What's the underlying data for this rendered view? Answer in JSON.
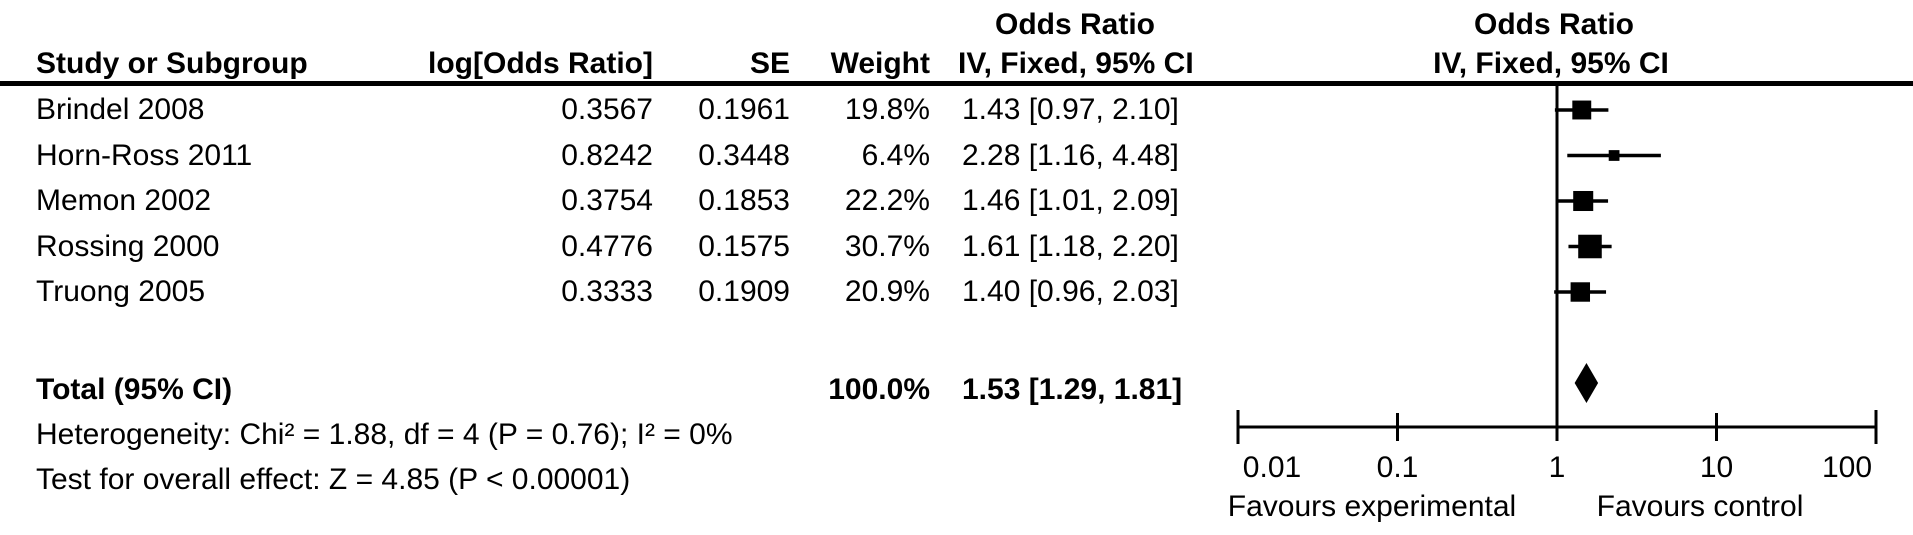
{
  "chart_data": {
    "type": "forest",
    "effect_measure": "Odds Ratio",
    "model": "IV, Fixed, 95% CI",
    "columns": {
      "study": "Study or Subgroup",
      "log_or": "log[Odds Ratio]",
      "se": "SE",
      "weight": "Weight",
      "ci": "IV, Fixed, 95% CI"
    },
    "left_header": {
      "line1": "Odds Ratio",
      "line2": "IV, Fixed, 95% CI"
    },
    "graph_header": {
      "line1": "Odds Ratio",
      "line2": "IV, Fixed, 95% CI"
    },
    "studies": [
      {
        "name": "Brindel 2008",
        "log_or": "0.3567",
        "se": "0.1961",
        "weight": "19.8%",
        "ci_text": "1.43 [0.97, 2.10]",
        "or": 1.43,
        "ci_low": 0.97,
        "ci_high": 2.1,
        "weight_pct": 19.8
      },
      {
        "name": "Horn-Ross 2011",
        "log_or": "0.8242",
        "se": "0.3448",
        "weight": "6.4%",
        "ci_text": "2.28 [1.16, 4.48]",
        "or": 2.28,
        "ci_low": 1.16,
        "ci_high": 4.48,
        "weight_pct": 6.4
      },
      {
        "name": "Memon 2002",
        "log_or": "0.3754",
        "se": "0.1853",
        "weight": "22.2%",
        "ci_text": "1.46 [1.01, 2.09]",
        "or": 1.46,
        "ci_low": 1.01,
        "ci_high": 2.09,
        "weight_pct": 22.2
      },
      {
        "name": "Rossing 2000",
        "log_or": "0.4776",
        "se": "0.1575",
        "weight": "30.7%",
        "ci_text": "1.61 [1.18, 2.20]",
        "or": 1.61,
        "ci_low": 1.18,
        "ci_high": 2.2,
        "weight_pct": 30.7
      },
      {
        "name": "Truong 2005",
        "log_or": "0.3333",
        "se": "0.1909",
        "weight": "20.9%",
        "ci_text": "1.40 [0.96, 2.03]",
        "or": 1.4,
        "ci_low": 0.96,
        "ci_high": 2.03,
        "weight_pct": 20.9
      }
    ],
    "total": {
      "label": "Total (95% CI)",
      "weight": "100.0%",
      "ci_text": "1.53 [1.29, 1.81]",
      "or": 1.53,
      "ci_low": 1.29,
      "ci_high": 1.81
    },
    "footnotes": {
      "heterogeneity": "Heterogeneity: Chi² = 1.88, df = 4 (P = 0.76); I² = 0%",
      "overall_effect": "Test for overall effect: Z = 4.85 (P < 0.00001)"
    },
    "axis": {
      "scale": "log",
      "min": 0.01,
      "max": 100,
      "ticks": [
        0.01,
        0.1,
        1,
        10,
        100
      ],
      "tick_labels": [
        "0.01",
        "0.1",
        "1",
        "10",
        "100"
      ]
    },
    "favours": {
      "left": "Favours experimental",
      "right": "Favours control"
    },
    "colors": {
      "ink": "#000000",
      "background": "#ffffff"
    }
  }
}
